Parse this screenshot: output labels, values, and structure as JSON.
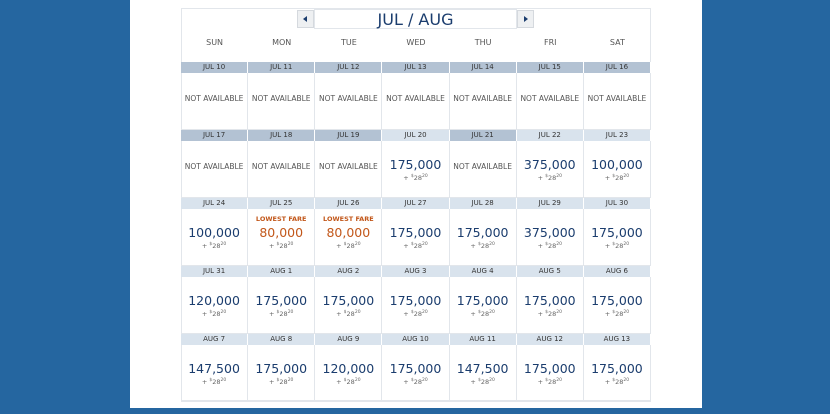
{
  "calendar": {
    "title": "JUL / AUG",
    "days": [
      "SUN",
      "MON",
      "TUE",
      "WED",
      "THU",
      "FRI",
      "SAT"
    ],
    "weeks": [
      {
        "cells": [
          {
            "date": "JUL 10",
            "text": "NOT AVAILABLE"
          },
          {
            "date": "JUL 11",
            "text": "NOT AVAILABLE"
          },
          {
            "date": "JUL 12",
            "text": "NOT AVAILABLE"
          },
          {
            "date": "JUL 13",
            "text": "NOT AVAILABLE"
          },
          {
            "date": "JUL 14",
            "text": "NOT AVAILABLE"
          },
          {
            "date": "JUL 15",
            "text": "NOT AVAILABLE"
          },
          {
            "date": "JUL 16",
            "text": "NOT AVAILABLE"
          }
        ]
      },
      {
        "cells": [
          {
            "date": "JUL 17",
            "text": "NOT AVAILABLE"
          },
          {
            "date": "JUL 18",
            "text": "NOT AVAILABLE"
          },
          {
            "date": "JUL 19",
            "text": "NOT AVAILABLE"
          },
          {
            "date": "JUL 20",
            "price": "175,000",
            "fee": [
              "+",
              "$",
              "28",
              "20"
            ]
          },
          {
            "date": "JUL 21",
            "text": "NOT AVAILABLE"
          },
          {
            "date": "JUL 22",
            "price": "375,000",
            "fee": [
              "+",
              "$",
              "28",
              "20"
            ]
          },
          {
            "date": "JUL 23",
            "price": "100,000",
            "fee": [
              "+",
              "$",
              "28",
              "20"
            ]
          }
        ]
      },
      {
        "cells": [
          {
            "date": "JUL 24",
            "price": "100,000",
            "fee": [
              "+",
              "$",
              "28",
              "20"
            ]
          },
          {
            "date": "JUL 25",
            "label": "LOWEST FARE",
            "price": "80,000",
            "fee": [
              "+",
              "$",
              "28",
              "20"
            ]
          },
          {
            "date": "JUL 26",
            "label": "LOWEST FARE",
            "price": "80,000",
            "fee": [
              "+",
              "$",
              "28",
              "20"
            ]
          },
          {
            "date": "JUL 27",
            "price": "175,000",
            "fee": [
              "+",
              "$",
              "28",
              "20"
            ]
          },
          {
            "date": "JUL 28",
            "price": "175,000",
            "fee": [
              "+",
              "$",
              "28",
              "20"
            ]
          },
          {
            "date": "JUL 29",
            "price": "375,000",
            "fee": [
              "+",
              "$",
              "28",
              "20"
            ]
          },
          {
            "date": "JUL 30",
            "price": "175,000",
            "fee": [
              "+",
              "$",
              "28",
              "20"
            ]
          }
        ]
      },
      {
        "cells": [
          {
            "date": "JUL 31",
            "price": "120,000",
            "fee": [
              "+",
              "$",
              "28",
              "20"
            ]
          },
          {
            "date": "AUG 1",
            "price": "175,000",
            "fee": [
              "+",
              "$",
              "28",
              "20"
            ]
          },
          {
            "date": "AUG 2",
            "price": "175,000",
            "fee": [
              "+",
              "$",
              "28",
              "20"
            ]
          },
          {
            "date": "AUG 3",
            "price": "175,000",
            "fee": [
              "+",
              "$",
              "28",
              "20"
            ]
          },
          {
            "date": "AUG 4",
            "price": "175,000",
            "fee": [
              "+",
              "$",
              "28",
              "20"
            ]
          },
          {
            "date": "AUG 5",
            "price": "175,000",
            "fee": [
              "+",
              "$",
              "28",
              "20"
            ]
          },
          {
            "date": "AUG 6",
            "price": "175,000",
            "fee": [
              "+",
              "$",
              "28",
              "20"
            ]
          }
        ]
      },
      {
        "cells": [
          {
            "date": "AUG 7",
            "price": "147,500",
            "fee": [
              "+",
              "$",
              "28",
              "20"
            ]
          },
          {
            "date": "AUG 8",
            "price": "175,000",
            "fee": [
              "+",
              "$",
              "28",
              "20"
            ]
          },
          {
            "date": "AUG 9",
            "price": "120,000",
            "fee": [
              "+",
              "$",
              "28",
              "20"
            ]
          },
          {
            "date": "AUG 10",
            "price": "175,000",
            "fee": [
              "+",
              "$",
              "28",
              "20"
            ]
          },
          {
            "date": "AUG 11",
            "price": "147,500",
            "fee": [
              "+",
              "$",
              "28",
              "20"
            ]
          },
          {
            "date": "AUG 12",
            "price": "175,000",
            "fee": [
              "+",
              "$",
              "28",
              "20"
            ]
          },
          {
            "date": "AUG 13",
            "price": "175,000",
            "fee": [
              "+",
              "$",
              "28",
              "20"
            ]
          }
        ]
      }
    ]
  }
}
